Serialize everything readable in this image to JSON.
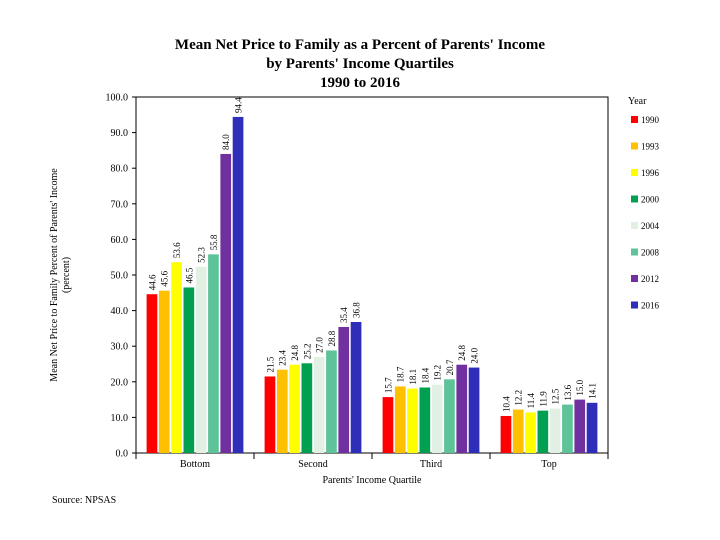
{
  "chart_data": {
    "type": "bar",
    "title_lines": [
      "Mean Net Price to Family as a Percent of Parents' Income",
      "by Parents' Income Quartiles",
      "1990 to 2016"
    ],
    "xlabel": "Parents' Income Quartile",
    "ylabel_lines": [
      "Mean Net Price to Family Percent of Parents' Income",
      "(percent)"
    ],
    "ylim": [
      0,
      100
    ],
    "yticks": [
      "0.0",
      "10.0",
      "20.0",
      "30.0",
      "40.0",
      "50.0",
      "60.0",
      "70.0",
      "80.0",
      "90.0",
      "100.0"
    ],
    "categories": [
      "Bottom",
      "Second",
      "Third",
      "Top"
    ],
    "legend_title": "Year",
    "legend_position": "right",
    "grid": false,
    "series": [
      {
        "name": "1990",
        "color": "#ff0000",
        "values": [
          44.6,
          21.5,
          15.7,
          10.4
        ],
        "labels": [
          "44.6",
          "21.5",
          "15.7",
          "10.4"
        ]
      },
      {
        "name": "1993",
        "color": "#ffc000",
        "values": [
          45.6,
          23.4,
          18.7,
          12.2
        ],
        "labels": [
          "45.6",
          "23.4",
          "18.7",
          "12.2"
        ]
      },
      {
        "name": "1996",
        "color": "#ffff00",
        "values": [
          53.6,
          24.8,
          18.1,
          11.4
        ],
        "labels": [
          "53.6",
          "24.8",
          "18.1",
          "11.4"
        ]
      },
      {
        "name": "2000",
        "color": "#00a050",
        "values": [
          46.5,
          25.2,
          18.4,
          11.9
        ],
        "labels": [
          "46.5",
          "25.2",
          "18.4",
          "11.9"
        ]
      },
      {
        "name": "2004",
        "color": "#e2f0e4",
        "values": [
          52.3,
          27.0,
          19.2,
          12.5
        ],
        "labels": [
          "52.3",
          "27.0",
          "19.2",
          "12.5"
        ]
      },
      {
        "name": "2008",
        "color": "#5fc39a",
        "values": [
          55.8,
          28.8,
          20.7,
          13.6
        ],
        "labels": [
          "55.8",
          "28.8",
          "20.7",
          "13.6"
        ]
      },
      {
        "name": "2012",
        "color": "#7030a0",
        "values": [
          84.0,
          35.4,
          24.8,
          15.0
        ],
        "labels": [
          "84.0",
          "35.4",
          "24.8",
          "15.0"
        ]
      },
      {
        "name": "2016",
        "color": "#2e2eb8",
        "values": [
          94.4,
          36.8,
          24.0,
          14.1
        ],
        "labels": [
          "94.4",
          "36.8",
          "24.0",
          "14.1"
        ]
      }
    ]
  },
  "source": "Source: NPSAS"
}
